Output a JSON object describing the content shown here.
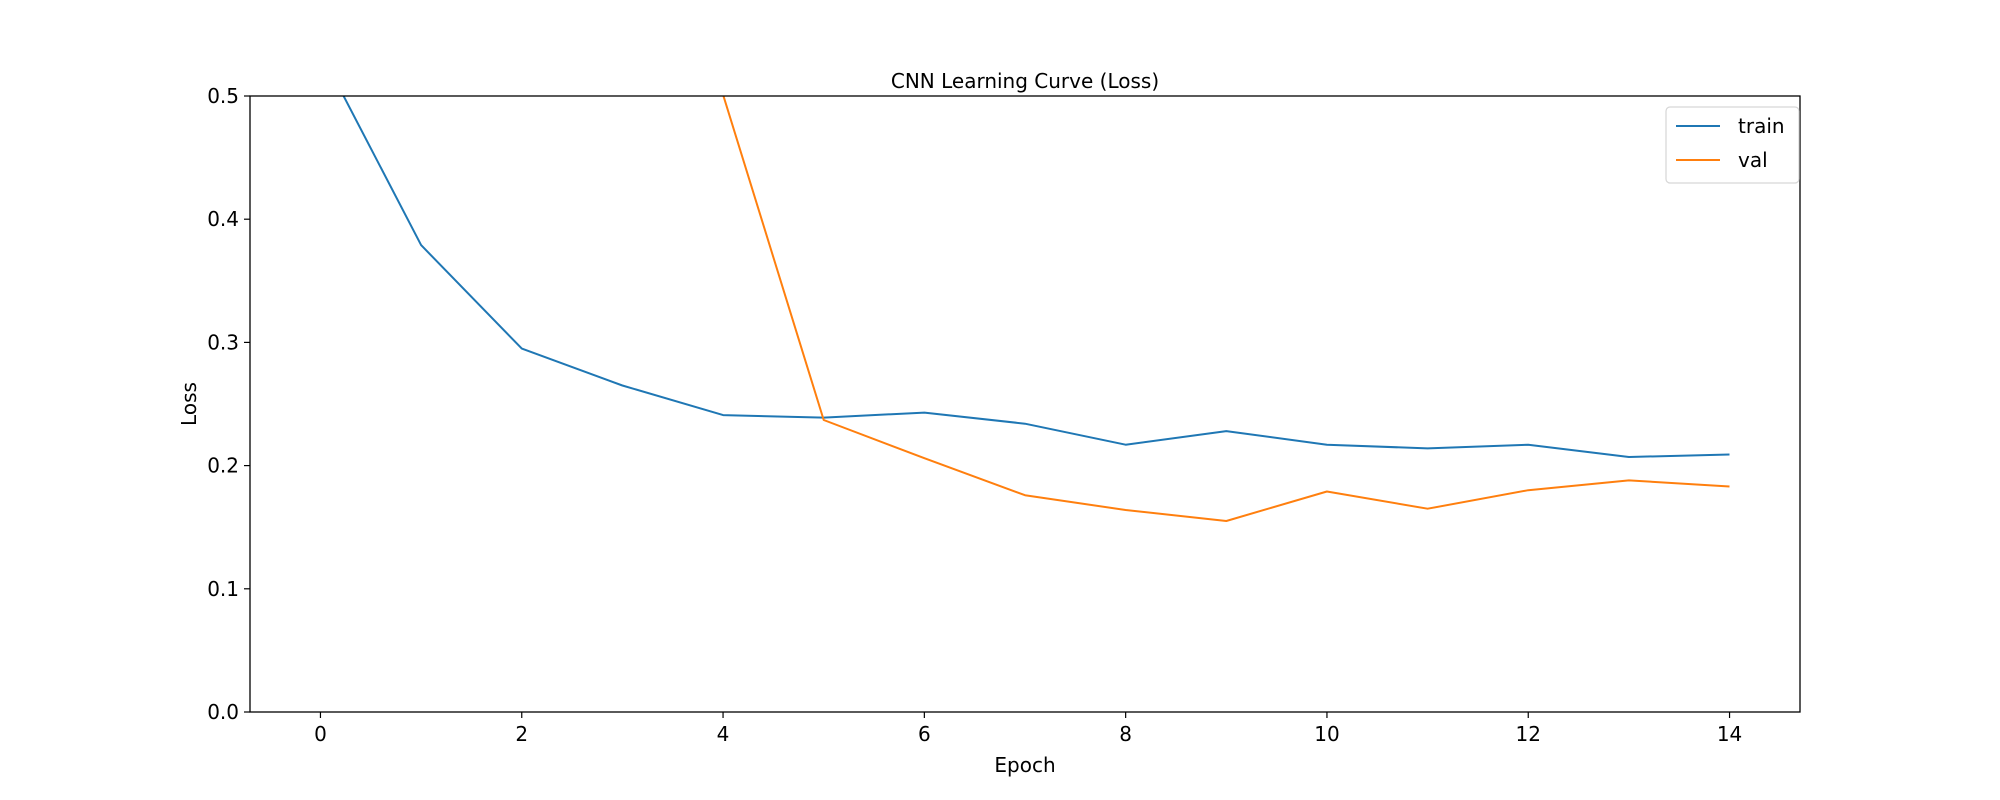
{
  "chart_data": {
    "type": "line",
    "title": "CNN Learning Curve (Loss)",
    "xlabel": "Epoch",
    "ylabel": "Loss",
    "xlim": [
      -0.7,
      14.7
    ],
    "ylim": [
      0.0,
      0.5
    ],
    "xticks": [
      0,
      2,
      4,
      6,
      8,
      10,
      12,
      14
    ],
    "yticks": [
      0.0,
      0.1,
      0.2,
      0.3,
      0.4,
      0.5
    ],
    "ytick_labels": [
      "0.0",
      "0.1",
      "0.2",
      "0.3",
      "0.4",
      "0.5"
    ],
    "grid": false,
    "legend_position": "upper right",
    "x": [
      0,
      1,
      2,
      3,
      4,
      5,
      6,
      7,
      8,
      9,
      10,
      11,
      12,
      13,
      14
    ],
    "series": [
      {
        "name": "train",
        "color": "#1f77b4",
        "values": [
          0.536,
          0.379,
          0.295,
          0.265,
          0.241,
          0.239,
          0.243,
          0.234,
          0.217,
          0.228,
          0.217,
          0.214,
          0.217,
          0.207,
          0.209
        ]
      },
      {
        "name": "val",
        "color": "#ff7f0e",
        "values": [
          null,
          null,
          null,
          null,
          0.501,
          0.237,
          0.206,
          0.176,
          0.164,
          0.155,
          0.179,
          0.165,
          0.18,
          0.188,
          0.183
        ]
      }
    ]
  },
  "legend": {
    "items": [
      {
        "label": "train",
        "color": "#1f77b4"
      },
      {
        "label": "val",
        "color": "#ff7f0e"
      }
    ]
  }
}
